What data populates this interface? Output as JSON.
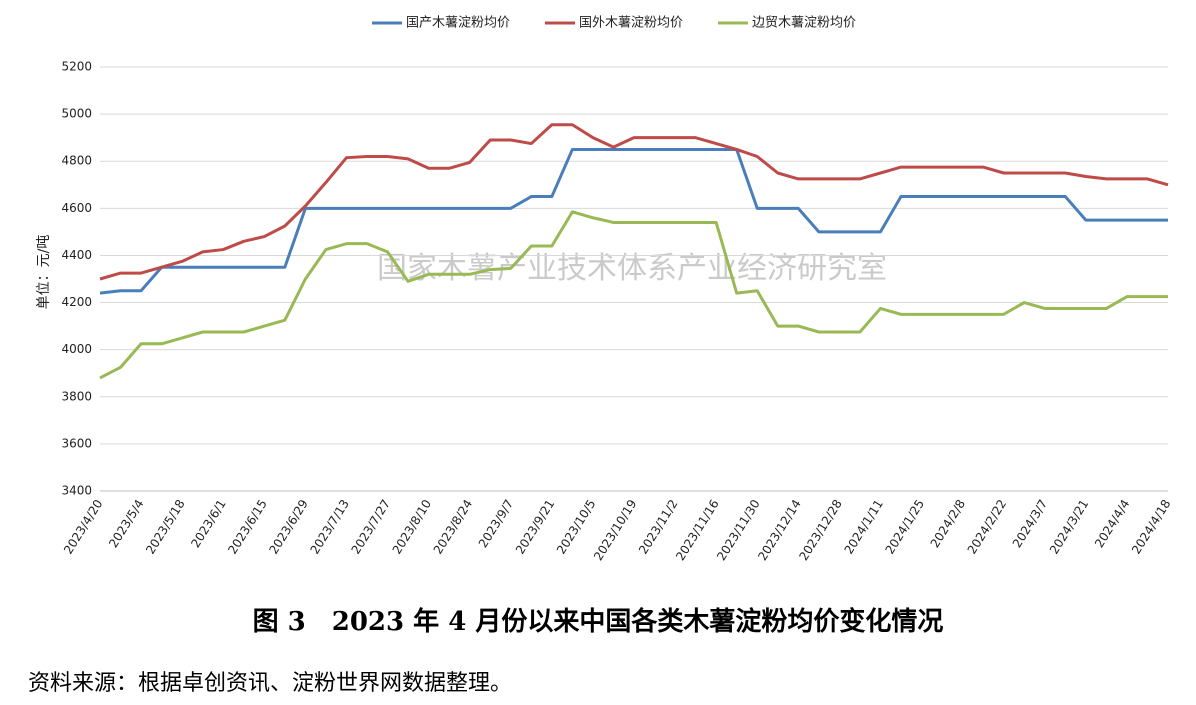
{
  "chart_data": {
    "type": "line",
    "y_label": "单位：元/吨",
    "watermark": "国家木薯产业技术体系产业经济研究室",
    "caption": "图 3　2023 年 4 月份以来中国各类木薯淀粉均价变化情况",
    "source": "资料来源：根据卓创资讯、淀粉世界网数据整理。",
    "categories": [
      "2023/4/20",
      null,
      "2023/5/4",
      null,
      "2023/5/18",
      null,
      "2023/6/1",
      null,
      "2023/6/15",
      null,
      "2023/6/29",
      null,
      "2023/7/13",
      null,
      "2023/7/27",
      null,
      "2023/8/10",
      null,
      "2023/8/24",
      null,
      "2023/9/7",
      null,
      "2023/9/21",
      null,
      "2023/10/5",
      null,
      "2023/10/19",
      null,
      "2023/11/2",
      null,
      "2023/11/16",
      null,
      "2023/11/30",
      null,
      "2023/12/14",
      null,
      "2023/12/28",
      null,
      "2024/1/11",
      null,
      "2024/1/25",
      null,
      "2024/2/8",
      null,
      "2024/2/22",
      null,
      "2024/3/7",
      null,
      "2024/3/21",
      null,
      "2024/4/4",
      null,
      "2024/4/18"
    ],
    "series": [
      {
        "name": "国产木薯淀粉均价",
        "color": "#4a7ebb",
        "values": [
          4240,
          4250,
          4250,
          4350,
          4350,
          4350,
          4350,
          4350,
          4350,
          4350,
          4600,
          4600,
          4600,
          4600,
          4600,
          4600,
          4600,
          4600,
          4600,
          4600,
          4600,
          4650,
          4650,
          4850,
          4850,
          4850,
          4850,
          4850,
          4850,
          4850,
          4850,
          4850,
          4600,
          4600,
          4600,
          4500,
          4500,
          4500,
          4500,
          4650,
          4650,
          4650,
          4650,
          4650,
          4650,
          4650,
          4650,
          4650,
          4550,
          4550,
          4550,
          4550,
          4550
        ]
      },
      {
        "name": "国外木薯淀粉均价",
        "color": "#be4b48",
        "values": [
          4300,
          4325,
          4325,
          4350,
          4375,
          4415,
          4425,
          4460,
          4480,
          4525,
          4610,
          4710,
          4815,
          4820,
          4820,
          4810,
          4770,
          4770,
          4795,
          4890,
          4890,
          4875,
          4955,
          4955,
          4900,
          4860,
          4900,
          4900,
          4900,
          4900,
          4875,
          4850,
          4820,
          4750,
          4725,
          4725,
          4725,
          4725,
          4750,
          4775,
          4775,
          4775,
          4775,
          4775,
          4750,
          4750,
          4750,
          4750,
          4735,
          4725,
          4725,
          4725,
          4700
        ]
      },
      {
        "name": "边贸木薯淀粉均价",
        "color": "#98b954",
        "values": [
          3880,
          3925,
          4025,
          4025,
          4050,
          4075,
          4075,
          4075,
          4100,
          4125,
          4300,
          4425,
          4450,
          4450,
          4415,
          4290,
          4320,
          4320,
          4320,
          4340,
          4345,
          4440,
          4440,
          4585,
          4560,
          4540,
          4540,
          4540,
          4540,
          4540,
          4540,
          4240,
          4250,
          4100,
          4100,
          4075,
          4075,
          4075,
          4175,
          4150,
          4150,
          4150,
          4150,
          4150,
          4150,
          4200,
          4175,
          4175,
          4175,
          4175,
          4225,
          4225,
          4225
        ]
      }
    ],
    "ylim": [
      3400,
      5200
    ],
    "yticks": [
      3400,
      3600,
      3800,
      4000,
      4200,
      4400,
      4600,
      4800,
      5000,
      5200
    ],
    "grid": true
  }
}
